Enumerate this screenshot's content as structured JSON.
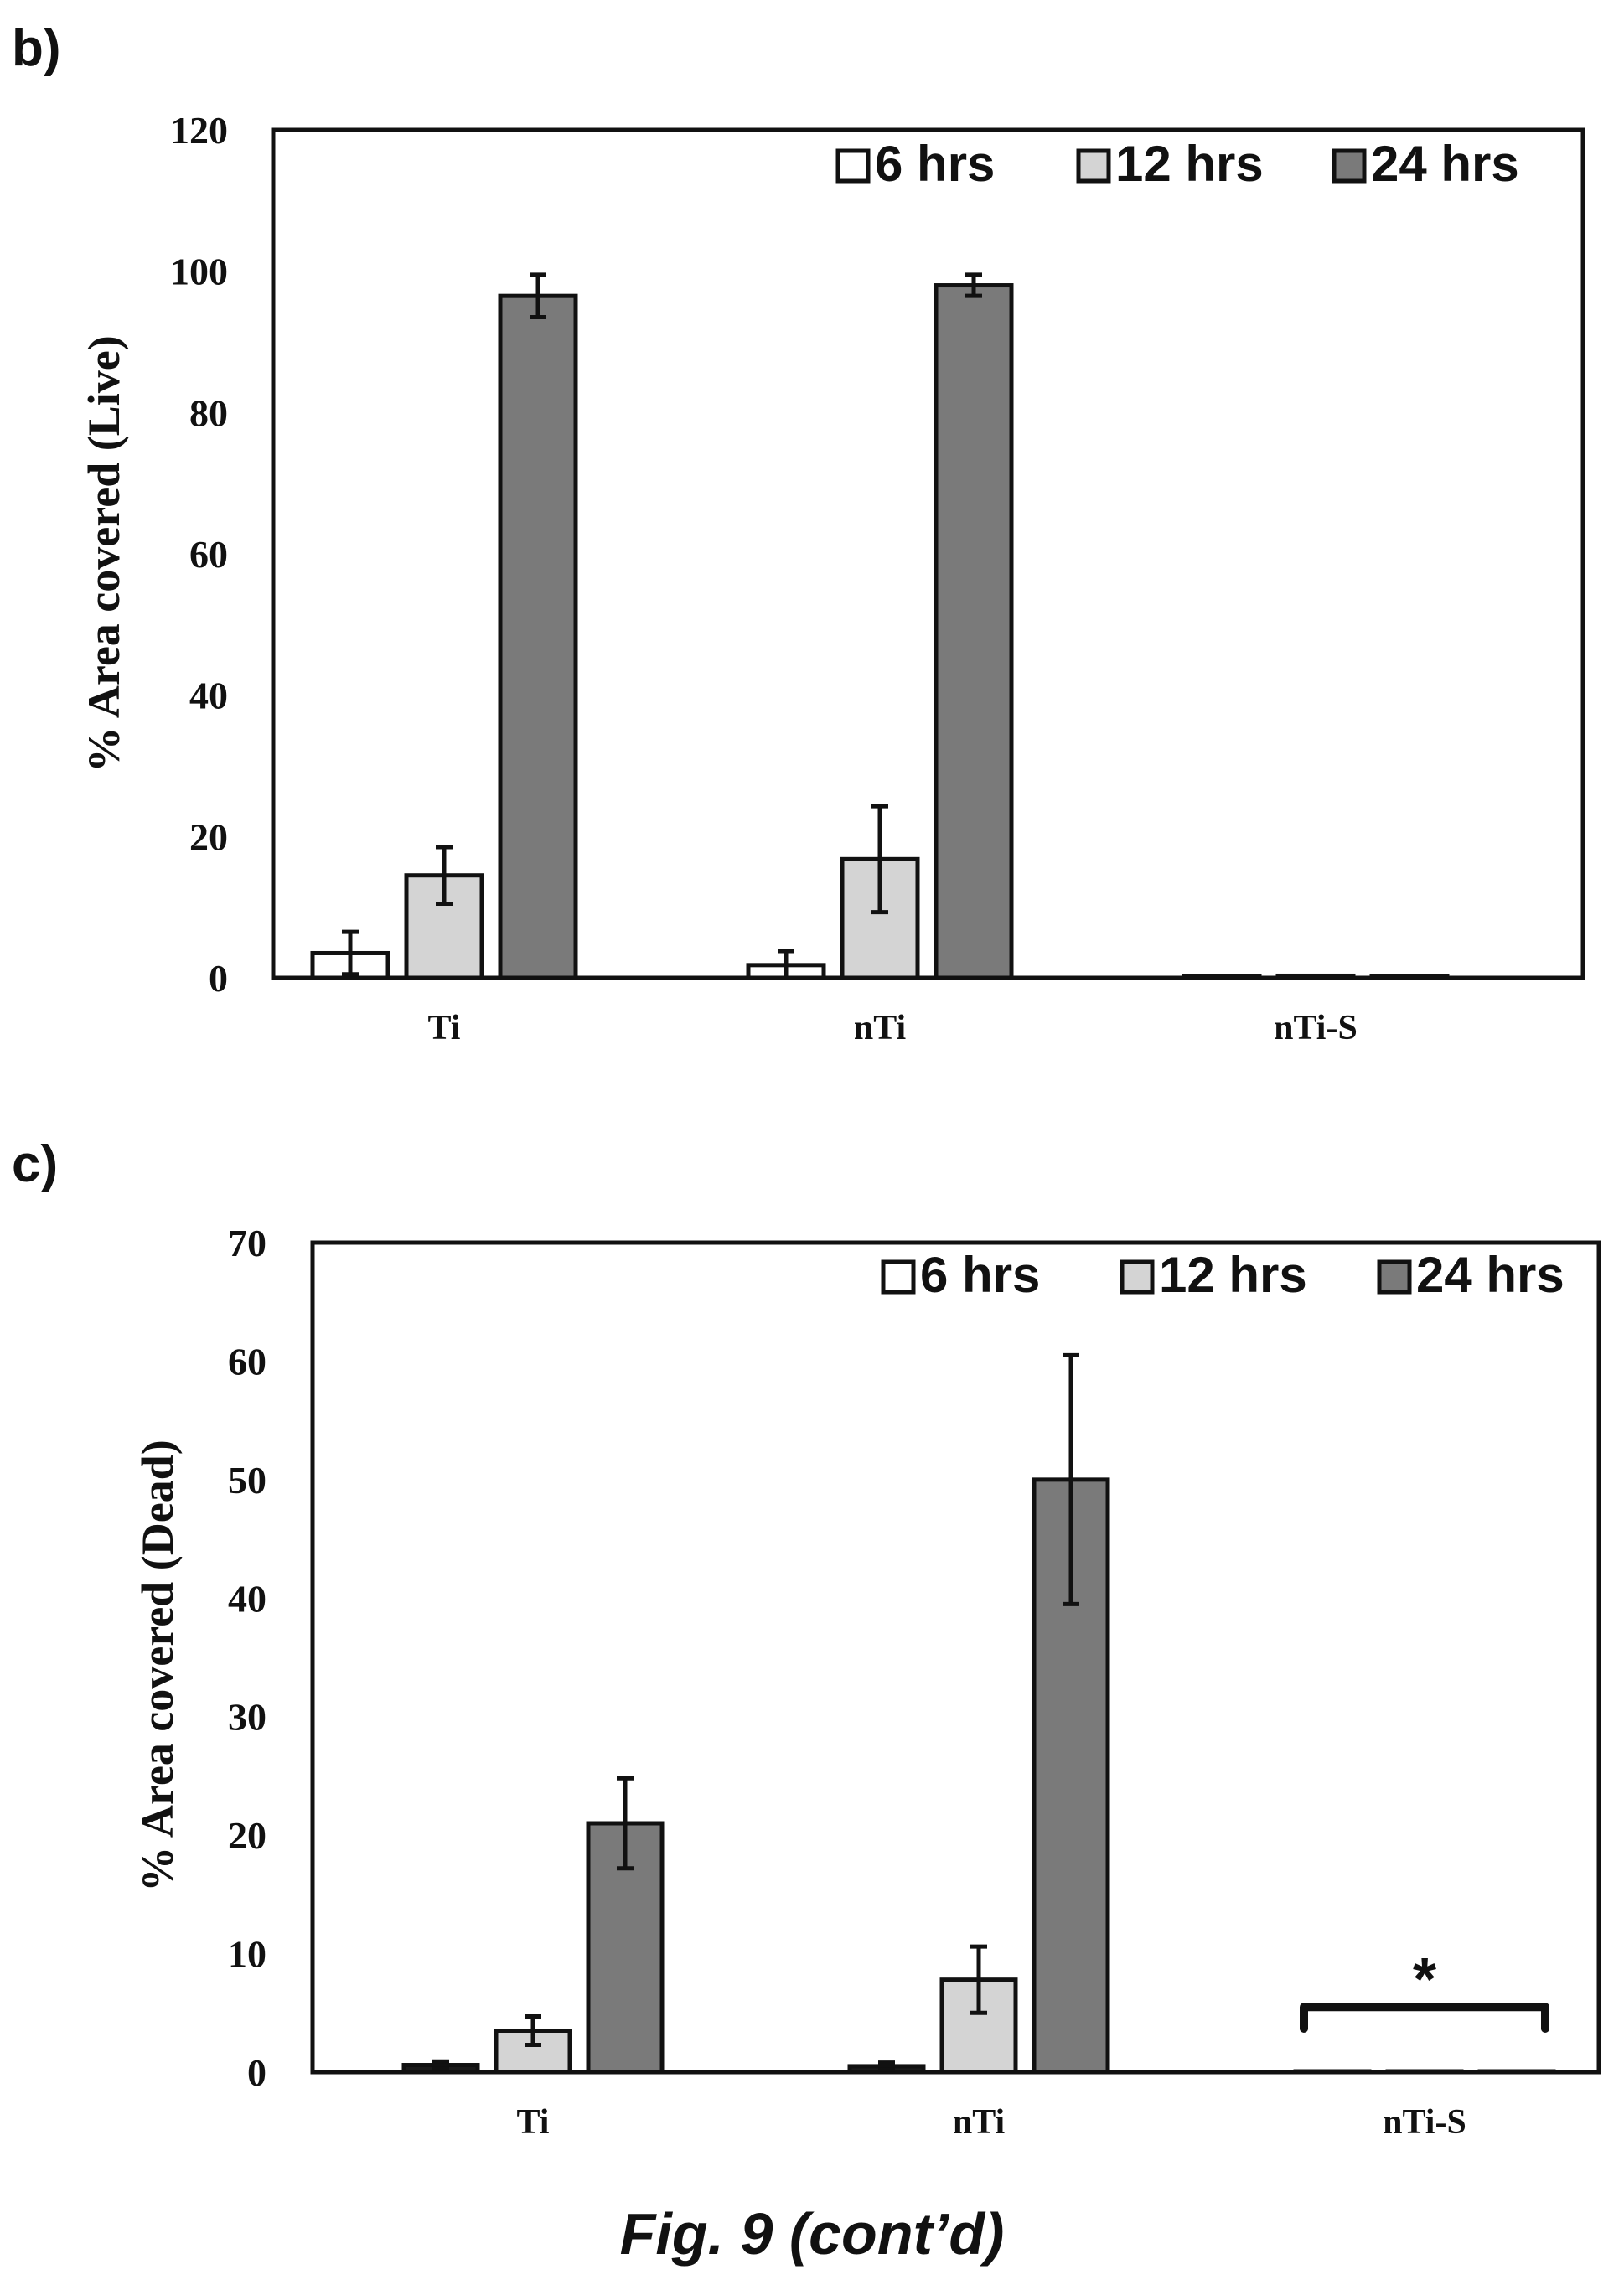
{
  "caption": "Fig. 9 (cont’d)",
  "colors": {
    "6 hrs": "#ffffff",
    "12 hrs": "#d4d4d4",
    "24 hrs": "#7a7a7a",
    "dead_6 hrs": "#1a1a1a"
  },
  "chart_data": [
    {
      "panel": "b)",
      "type": "bar",
      "title": "",
      "xlabel": "",
      "ylabel": "% Area covered (Live)",
      "ylim": [
        0,
        120
      ],
      "yticks": [
        "0",
        "20",
        "40",
        "60",
        "80",
        "100",
        "120"
      ],
      "categories": [
        "Ti",
        "nTi",
        "nTi-S"
      ],
      "legend": {
        "placement": "top-right",
        "entries": [
          "6 hrs",
          "12 hrs",
          "24 hrs"
        ]
      },
      "grid": false,
      "series": [
        {
          "name": "6 hrs",
          "values": [
            3.5,
            1.8,
            0.2
          ],
          "errors": [
            3,
            2,
            0
          ]
        },
        {
          "name": "12 hrs",
          "values": [
            14.5,
            16.8,
            0.3
          ],
          "errors": [
            4,
            7.5,
            0
          ]
        },
        {
          "name": "24 hrs",
          "values": [
            96.5,
            98,
            0.2
          ],
          "errors": [
            3,
            1.5,
            0
          ]
        }
      ]
    },
    {
      "panel": "c)",
      "type": "bar",
      "title": "",
      "xlabel": "",
      "ylabel": "% Area covered (Dead)",
      "ylim": [
        0,
        70
      ],
      "yticks": [
        "0",
        "10",
        "20",
        "30",
        "40",
        "50",
        "60",
        "70"
      ],
      "categories": [
        "Ti",
        "nTi",
        "nTi-S"
      ],
      "legend": {
        "placement": "top-right",
        "entries": [
          "6 hrs",
          "12 hrs",
          "24 hrs"
        ]
      },
      "grid": false,
      "annotation": {
        "category": "nTi-S",
        "text": "*",
        "value": 5.5
      },
      "series": [
        {
          "name": "6 hrs",
          "values": [
            0.6,
            0.5,
            0
          ],
          "errors": [
            0.3,
            0.3,
            0
          ]
        },
        {
          "name": "12 hrs",
          "values": [
            3.5,
            7.8,
            0
          ],
          "errors": [
            1.2,
            2.8,
            0
          ]
        },
        {
          "name": "24 hrs",
          "values": [
            21,
            50,
            0
          ],
          "errors": [
            3.8,
            10.5,
            0
          ]
        }
      ]
    }
  ]
}
